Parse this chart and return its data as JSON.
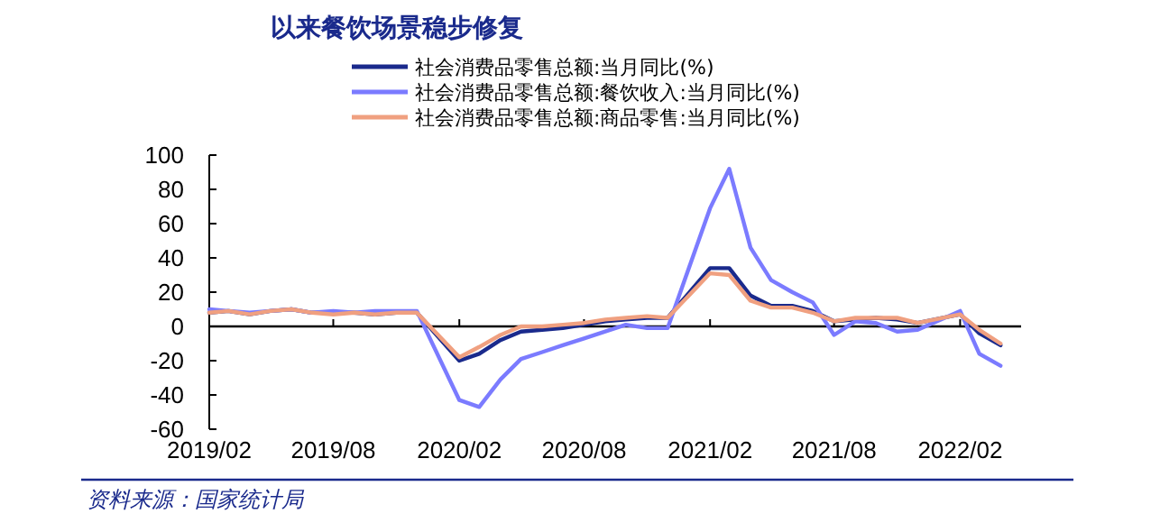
{
  "chart_data": {
    "type": "line",
    "title": "以来餐饮场景稳步修复",
    "x": [
      "2019-02",
      "2019-03",
      "2019-04",
      "2019-05",
      "2019-06",
      "2019-07",
      "2019-08",
      "2019-09",
      "2019-10",
      "2019-11",
      "2019-12",
      "2020-02",
      "2020-03",
      "2020-04",
      "2020-05",
      "2020-06",
      "2020-07",
      "2020-08",
      "2020-09",
      "2020-10",
      "2020-11",
      "2020-12",
      "2021-02",
      "2021-03",
      "2021-04",
      "2021-05",
      "2021-06",
      "2021-07",
      "2021-08",
      "2021-09",
      "2021-10",
      "2021-11",
      "2021-12",
      "2022-02",
      "2022-03",
      "2022-04"
    ],
    "series": [
      {
        "name": "社会消费品零售总额:当月同比(%)",
        "color": "#1a2a8c",
        "values": [
          8,
          9,
          7,
          9,
          10,
          8,
          8,
          8,
          7,
          8,
          8,
          -20,
          -16,
          -8,
          -3,
          -2,
          -1,
          1,
          3,
          4,
          5,
          5,
          34,
          34,
          18,
          12,
          12,
          9,
          3,
          4,
          5,
          4,
          2,
          7,
          -4,
          -11
        ]
      },
      {
        "name": "社会消费品零售总额:餐饮收入:当月同比(%)",
        "color": "#7b7bff",
        "values": [
          10,
          9,
          8,
          9,
          10,
          8,
          9,
          8,
          9,
          9,
          9,
          -43,
          -47,
          -31,
          -19,
          -15,
          -11,
          -7,
          -3,
          1,
          -1,
          -1,
          69,
          92,
          46,
          27,
          20,
          14,
          -5,
          3,
          2,
          -3,
          -2,
          9,
          -16,
          -23
        ]
      },
      {
        "name": "社会消费品零售总额:商品零售:当月同比(%)",
        "color": "#f0a080",
        "values": [
          8,
          9,
          7,
          9,
          10,
          8,
          7,
          8,
          7,
          8,
          8,
          -18,
          -12,
          -5,
          0,
          0,
          1,
          2,
          4,
          5,
          6,
          5,
          31,
          30,
          15,
          11,
          11,
          8,
          3,
          5,
          5,
          5,
          2,
          7,
          -2,
          -10
        ]
      }
    ],
    "xlim": [
      "2019-02",
      "2022-05"
    ],
    "xticks": [
      {
        "value": "2019-02",
        "label": "2019/02"
      },
      {
        "value": "2019-08",
        "label": "2019/08"
      },
      {
        "value": "2020-02",
        "label": "2020/02"
      },
      {
        "value": "2020-08",
        "label": "2020/08"
      },
      {
        "value": "2021-02",
        "label": "2021/02"
      },
      {
        "value": "2021-08",
        "label": "2021/08"
      },
      {
        "value": "2022-02",
        "label": "2022/02"
      }
    ],
    "ylim": [
      -60,
      100
    ],
    "yticks": [
      -60,
      -40,
      -20,
      0,
      20,
      40,
      60,
      80,
      100
    ],
    "legend": "top",
    "line_style": "solid",
    "marker": "none",
    "annotations": [
      "资料来源：国家统计局"
    ]
  }
}
